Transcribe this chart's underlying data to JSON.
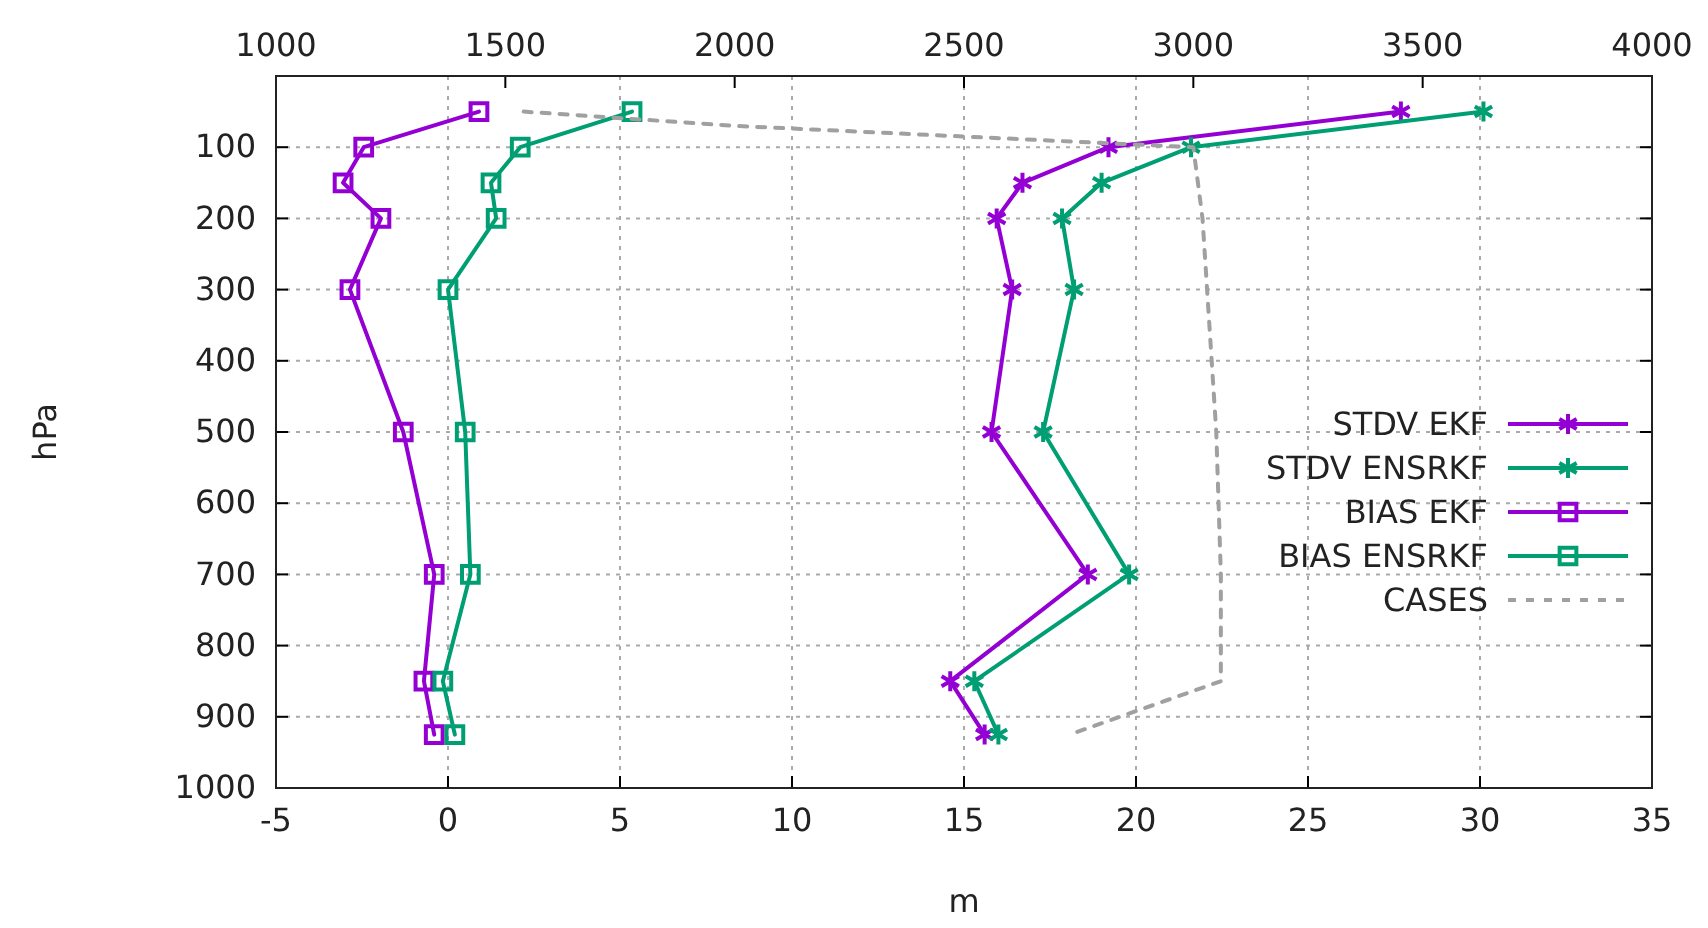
{
  "chart_data": {
    "type": "line",
    "xlabel": "m",
    "ylabel": "hPa",
    "xlim": [
      -5,
      35
    ],
    "xticks": [
      -5,
      0,
      5,
      10,
      15,
      20,
      25,
      30,
      35
    ],
    "x2lim": [
      1000,
      4000
    ],
    "x2ticks": [
      1000,
      1500,
      2000,
      2500,
      3000,
      3500,
      4000
    ],
    "ylim": [
      1000,
      0
    ],
    "yticks": [
      100,
      200,
      300,
      400,
      500,
      600,
      700,
      800,
      900,
      1000
    ],
    "grid": true,
    "legend": "right",
    "series": [
      {
        "name": "STDV EKF",
        "color": "#9400d3",
        "marker": "cross",
        "x": [
          27.7,
          19.2,
          16.7,
          15.95,
          16.4,
          15.8,
          18.6,
          14.6,
          15.6
        ],
        "values": [
          50,
          100,
          150,
          200,
          300,
          500,
          700,
          850,
          925
        ]
      },
      {
        "name": "STDV ENSRKF",
        "color": "#009e73",
        "marker": "cross",
        "x": [
          30.1,
          21.6,
          19.0,
          17.85,
          18.2,
          17.3,
          19.8,
          15.3,
          16.0
        ],
        "values": [
          50,
          100,
          150,
          200,
          300,
          500,
          700,
          850,
          925
        ]
      },
      {
        "name": "BIAS EKF",
        "color": "#9400d3",
        "marker": "square",
        "x": [
          0.9,
          -2.45,
          -3.05,
          -1.95,
          -2.85,
          -1.3,
          -0.4,
          -0.7,
          -0.4
        ],
        "values": [
          50,
          100,
          150,
          200,
          300,
          500,
          700,
          850,
          925
        ]
      },
      {
        "name": "BIAS ENSRKF",
        "color": "#009e73",
        "marker": "square",
        "x": [
          5.35,
          2.1,
          1.25,
          1.4,
          0.0,
          0.5,
          0.65,
          -0.15,
          0.2
        ],
        "values": [
          50,
          100,
          150,
          200,
          300,
          500,
          700,
          850,
          925
        ]
      },
      {
        "name": "CASES",
        "color": "#a0a0a0",
        "marker": "none",
        "line_style": "dashed",
        "axis": "x2",
        "x": [
          1540,
          2000,
          3000,
          3010,
          3020,
          3030,
          3050,
          3060,
          3060,
          2730
        ],
        "values": [
          50,
          70,
          100,
          150,
          200,
          300,
          500,
          700,
          850,
          925
        ]
      }
    ]
  }
}
